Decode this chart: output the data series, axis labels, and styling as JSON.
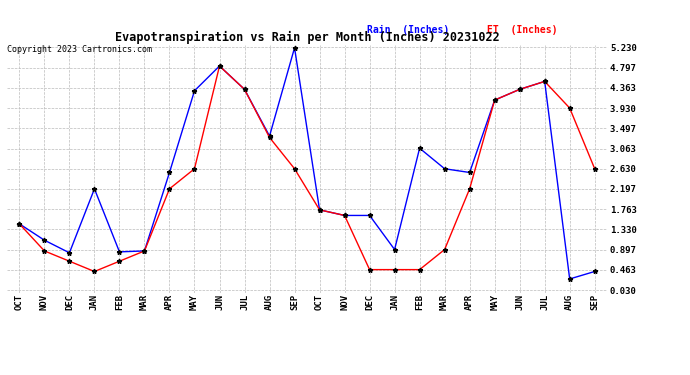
{
  "title": "Evapotranspiration vs Rain per Month (Inches) 20231022",
  "copyright": "Copyright 2023 Cartronics.com",
  "legend_rain": "Rain  (Inches)",
  "legend_et": "ET  (Inches)",
  "x_labels": [
    "OCT",
    "NOV",
    "DEC",
    "JAN",
    "FEB",
    "MAR",
    "APR",
    "MAY",
    "JUN",
    "JUL",
    "AUG",
    "SEP",
    "OCT",
    "NOV",
    "DEC",
    "JAN",
    "FEB",
    "MAR",
    "APR",
    "MAY",
    "JUN",
    "JUL",
    "AUG",
    "SEP"
  ],
  "rain_values": [
    1.45,
    1.1,
    0.83,
    2.2,
    0.85,
    0.87,
    2.55,
    4.3,
    4.83,
    4.33,
    3.33,
    5.22,
    1.75,
    1.63,
    1.63,
    0.9,
    3.07,
    2.63,
    2.55,
    4.1,
    4.33,
    4.5,
    0.27,
    0.43
  ],
  "et_values": [
    1.45,
    0.87,
    0.65,
    0.43,
    0.65,
    0.87,
    2.2,
    2.63,
    4.83,
    4.33,
    3.3,
    2.63,
    1.75,
    1.63,
    0.47,
    0.47,
    0.47,
    0.9,
    2.2,
    4.1,
    4.33,
    4.5,
    3.93,
    2.63
  ],
  "y_ticks": [
    0.03,
    0.463,
    0.897,
    1.33,
    1.763,
    2.197,
    2.63,
    3.063,
    3.497,
    3.93,
    4.363,
    4.797,
    5.23
  ],
  "y_min": 0.03,
  "y_max": 5.23,
  "rain_color": "blue",
  "et_color": "red",
  "background_color": "#ffffff",
  "grid_color": "#bbbbbb"
}
